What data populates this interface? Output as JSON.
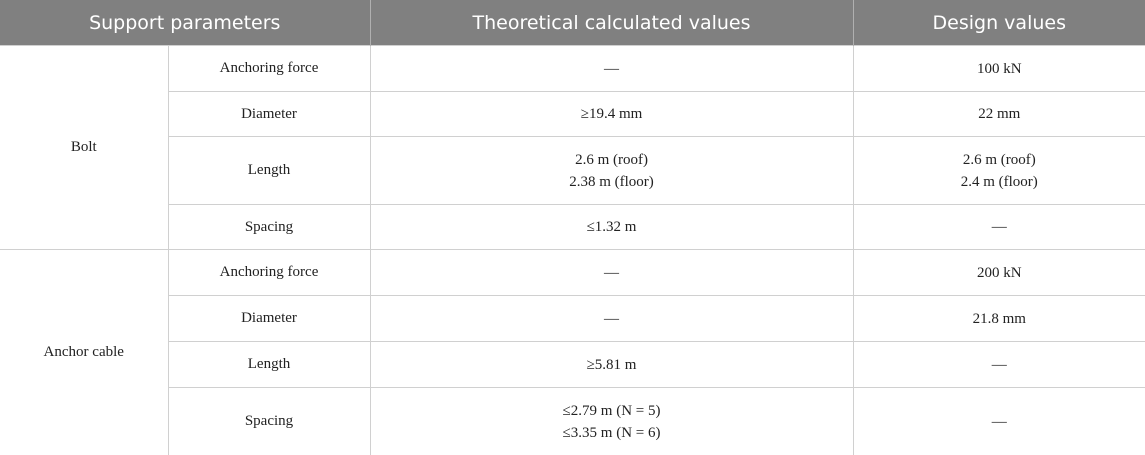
{
  "table": {
    "header": [
      "Support parameters",
      "Theoretical calculated values",
      "Design values"
    ],
    "groups": [
      {
        "name": "Bolt",
        "rows": [
          {
            "parameter": "Anchoring force",
            "theoretical": [
              "—"
            ],
            "design": [
              "100 kN"
            ]
          },
          {
            "parameter": "Diameter",
            "theoretical": [
              "≥19.4 mm"
            ],
            "design": [
              "22 mm"
            ]
          },
          {
            "parameter": "Length",
            "theoretical": [
              "2.6 m (roof)",
              "2.38 m (floor)"
            ],
            "design": [
              "2.6 m (roof)",
              "2.4 m (floor)"
            ]
          },
          {
            "parameter": "Spacing",
            "theoretical": [
              "≤1.32 m"
            ],
            "design": [
              "—"
            ]
          }
        ]
      },
      {
        "name": "Anchor cable",
        "rows": [
          {
            "parameter": "Anchoring force",
            "theoretical": [
              "—"
            ],
            "design": [
              "200 kN"
            ]
          },
          {
            "parameter": "Diameter",
            "theoretical": [
              "—"
            ],
            "design": [
              "21.8 mm"
            ]
          },
          {
            "parameter": "Length",
            "theoretical": [
              "≥5.81 m"
            ],
            "design": [
              "—"
            ]
          },
          {
            "parameter": "Spacing",
            "theoretical": [
              "≤2.79 m (N = 5)",
              "≤3.35 m (N = 6)"
            ],
            "design": [
              "—"
            ]
          }
        ]
      }
    ]
  }
}
